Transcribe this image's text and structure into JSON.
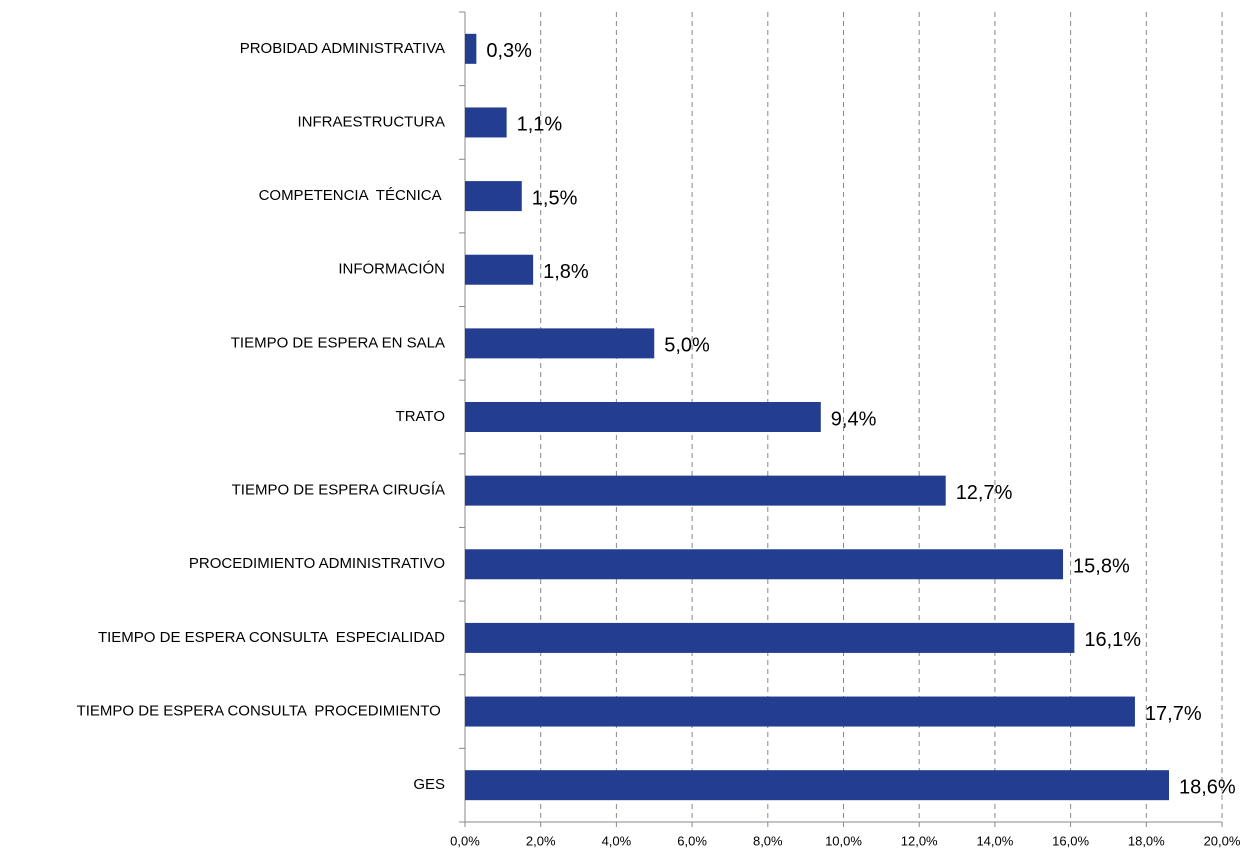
{
  "chart_data": {
    "type": "barh",
    "categories": [
      "PROBIDAD ADMINISTRATIVA",
      "INFRAESTRUCTURA",
      "COMPETENCIA  TÉCNICA ",
      "INFORMACIÓN",
      "TIEMPO DE ESPERA EN SALA",
      "TRATO",
      "TIEMPO DE ESPERA CIRUGÍA",
      "PROCEDIMIENTO ADMINISTRATIVO",
      "TIEMPO DE ESPERA CONSULTA  ESPECIALIDAD",
      "TIEMPO DE ESPERA CONSULTA  PROCEDIMIENTO ",
      "GES"
    ],
    "values": [
      0.3,
      1.1,
      1.5,
      1.8,
      5.0,
      9.4,
      12.7,
      15.8,
      16.1,
      17.7,
      18.6
    ],
    "value_labels": [
      "0,3%",
      "1,1%",
      "1,5%",
      "1,8%",
      "5,0%",
      "9,4%",
      "12,7%",
      "15,8%",
      "16,1%",
      "17,7%",
      "18,6%"
    ],
    "color": "#233e91",
    "xlim": [
      0,
      20
    ],
    "xticks": [
      {
        "value": 0,
        "label": "0,0%"
      },
      {
        "value": 2,
        "label": "2,0%"
      },
      {
        "value": 4,
        "label": "4,0%"
      },
      {
        "value": 6,
        "label": "6,0%"
      },
      {
        "value": 8,
        "label": "8,0%"
      },
      {
        "value": 10,
        "label": "10,0%"
      },
      {
        "value": 12,
        "label": "12,0%"
      },
      {
        "value": 14,
        "label": "14,0%"
      },
      {
        "value": 16,
        "label": "16,0%"
      },
      {
        "value": 18,
        "label": "18,0%"
      },
      {
        "value": 20,
        "label": "20,0%"
      }
    ],
    "grid": true
  }
}
